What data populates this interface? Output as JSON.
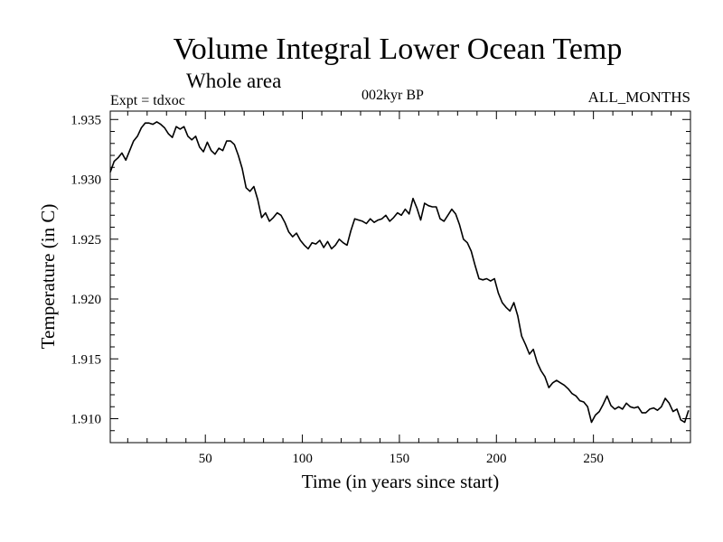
{
  "header": {
    "title": "Volume Integral Lower Ocean Temp",
    "subtitle": "Whole area",
    "experiment": "Expt = tdxoc",
    "period": "002kyr BP",
    "months": "ALL_MONTHS"
  },
  "chart_data": {
    "type": "line",
    "title": "Volume Integral Lower Ocean Temp",
    "subtitle": "Whole area",
    "xlabel": "Time (in years since start)",
    "ylabel": "Temperature (in C)",
    "xlim": [
      1,
      300
    ],
    "ylim": [
      1.908,
      1.9357
    ],
    "x_ticks": [
      50,
      100,
      150,
      200,
      250
    ],
    "x_tick_labels": [
      "50",
      "100",
      "150",
      "200",
      "250"
    ],
    "y_ticks": [
      1.91,
      1.915,
      1.92,
      1.925,
      1.93,
      1.935
    ],
    "y_tick_labels": [
      "1.910",
      "1.915",
      "1.920",
      "1.925",
      "1.930",
      "1.935"
    ],
    "grid": false,
    "series": [
      {
        "x": [
          1,
          3,
          5,
          7,
          9,
          11,
          13,
          15,
          17,
          19,
          21,
          23,
          25,
          27,
          29,
          31,
          33,
          35,
          37,
          39,
          41,
          43,
          45,
          47,
          49,
          51,
          53,
          55,
          57,
          59,
          61,
          63,
          65,
          67,
          69,
          71,
          73,
          75,
          77,
          79,
          81,
          83,
          85,
          87,
          89,
          91,
          93,
          95,
          97,
          99,
          101,
          103,
          105,
          107,
          109,
          111,
          113,
          115,
          117,
          119,
          121,
          123,
          125,
          127,
          129,
          131,
          133,
          135,
          137,
          139,
          141,
          143,
          145,
          147,
          149,
          151,
          153,
          155,
          157,
          159,
          161,
          163,
          165,
          167,
          169,
          171,
          173,
          175,
          177,
          179,
          181,
          183,
          185,
          187,
          189,
          191,
          193,
          195,
          197,
          199,
          201,
          203,
          205,
          207,
          209,
          211,
          213,
          215,
          217,
          219,
          221,
          223,
          225,
          227,
          229,
          231,
          233,
          235,
          237,
          239,
          241,
          243,
          245,
          247,
          249,
          251,
          253,
          255,
          257,
          259,
          261,
          263,
          265,
          267,
          269,
          271,
          273,
          275,
          277,
          279,
          281,
          283,
          285,
          287,
          289,
          291,
          293,
          295,
          297,
          299
        ],
        "values": [
          1.9306,
          1.9315,
          1.9318,
          1.9322,
          1.9316,
          1.9324,
          1.9332,
          1.9336,
          1.9343,
          1.9347,
          1.9347,
          1.9346,
          1.9348,
          1.9346,
          1.9343,
          1.9338,
          1.9335,
          1.9344,
          1.9342,
          1.9344,
          1.9336,
          1.9333,
          1.9336,
          1.9327,
          1.9323,
          1.9331,
          1.9324,
          1.9321,
          1.9326,
          1.9324,
          1.9332,
          1.9332,
          1.9329,
          1.932,
          1.9309,
          1.9293,
          1.929,
          1.9294,
          1.9283,
          1.9268,
          1.9272,
          1.9265,
          1.9268,
          1.9272,
          1.927,
          1.9264,
          1.9256,
          1.9252,
          1.9255,
          1.9249,
          1.9245,
          1.9242,
          1.9247,
          1.9246,
          1.9249,
          1.9243,
          1.9248,
          1.9242,
          1.9245,
          1.925,
          1.9247,
          1.9245,
          1.9257,
          1.9267,
          1.9266,
          1.9265,
          1.9263,
          1.9267,
          1.9264,
          1.9266,
          1.9267,
          1.927,
          1.9265,
          1.9268,
          1.9272,
          1.927,
          1.9275,
          1.9271,
          1.9284,
          1.9276,
          1.9266,
          1.928,
          1.9278,
          1.9277,
          1.9277,
          1.9267,
          1.9265,
          1.927,
          1.9275,
          1.9271,
          1.9262,
          1.925,
          1.9247,
          1.924,
          1.9228,
          1.9217,
          1.9216,
          1.9217,
          1.9215,
          1.9217,
          1.9205,
          1.9197,
          1.9193,
          1.919,
          1.9197,
          1.9186,
          1.9169,
          1.9162,
          1.9154,
          1.9158,
          1.9147,
          1.914,
          1.9135,
          1.9126,
          1.913,
          1.9132,
          1.913,
          1.9128,
          1.9125,
          1.9121,
          1.9119,
          1.9115,
          1.9114,
          1.911,
          1.9097,
          1.9103,
          1.9106,
          1.9112,
          1.9119,
          1.9111,
          1.9108,
          1.911,
          1.9108,
          1.9113,
          1.911,
          1.9109,
          1.911,
          1.9105,
          1.9105,
          1.9108,
          1.9109,
          1.9107,
          1.911,
          1.9117,
          1.9113,
          1.9106,
          1.9108,
          1.9099,
          1.9097,
          1.9107
        ]
      }
    ]
  }
}
